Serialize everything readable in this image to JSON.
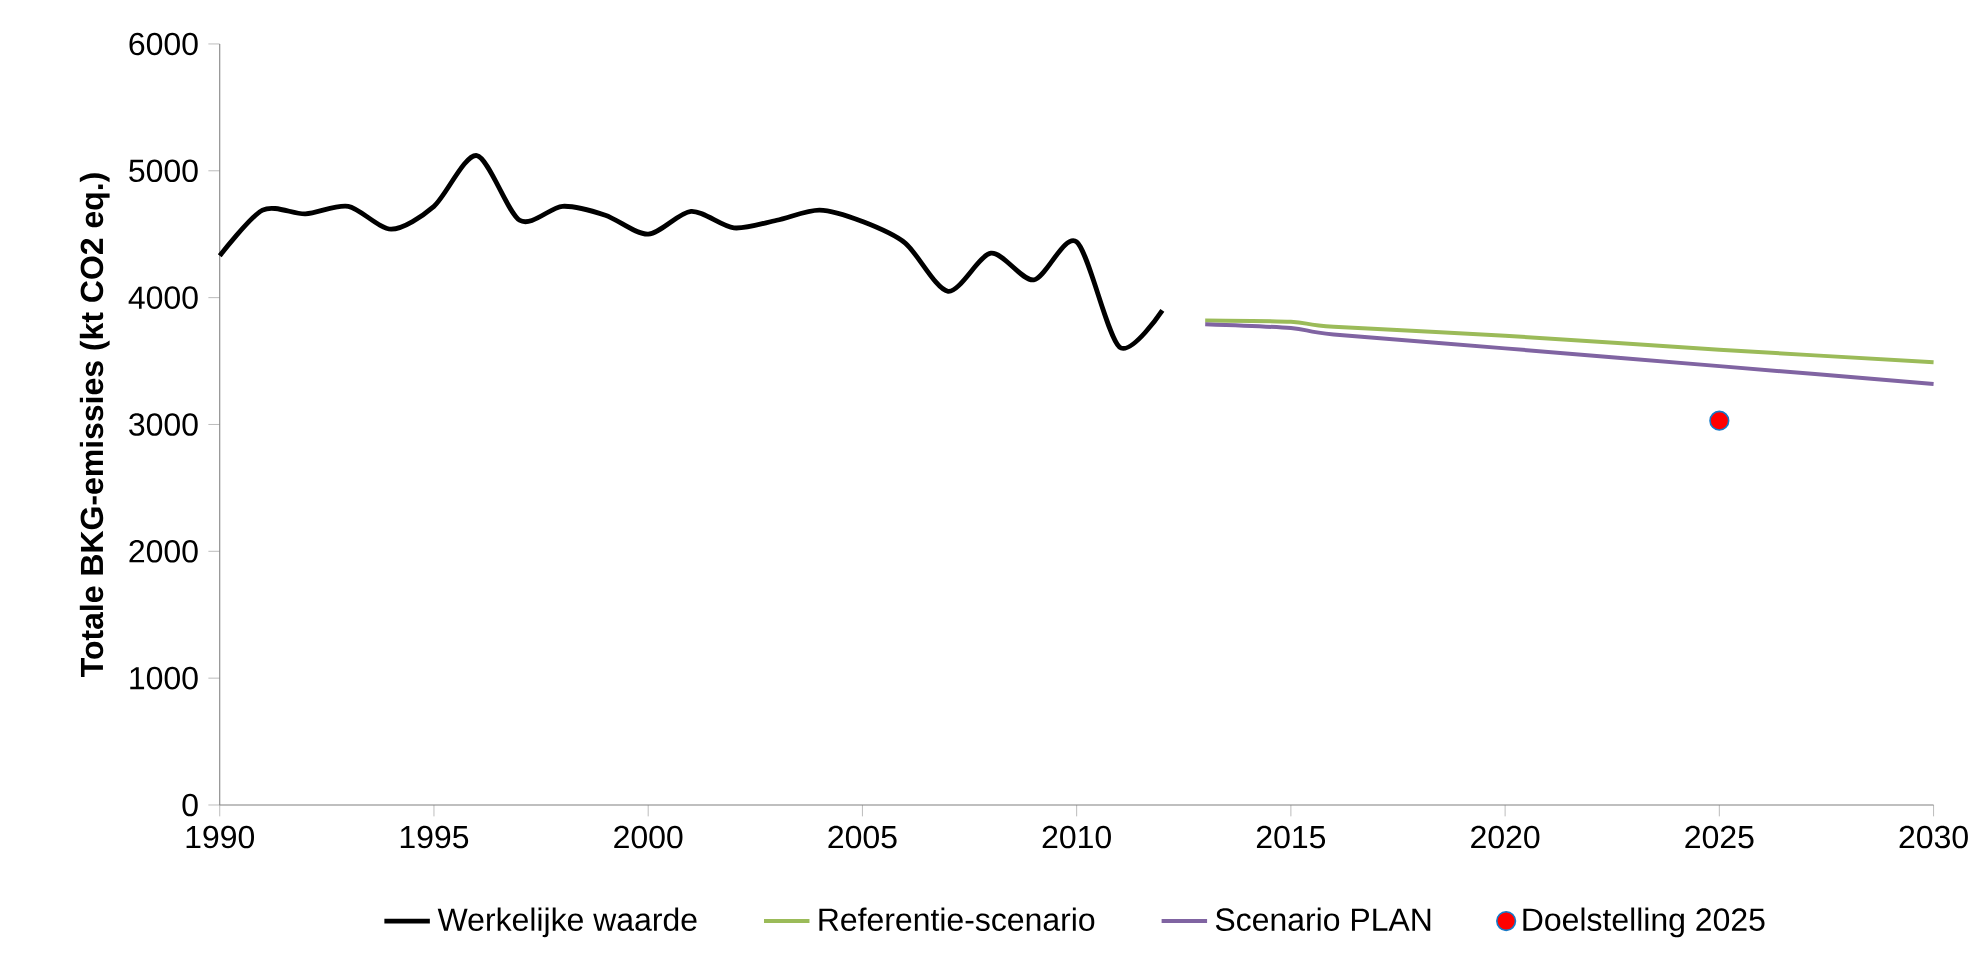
{
  "chart_data": {
    "type": "line",
    "ylabel": "Totale BKG-emissies (kt CO2 eq.)",
    "xlim": [
      1990,
      2030
    ],
    "xticks": [
      1990,
      1995,
      2000,
      2005,
      2010,
      2015,
      2020,
      2025,
      2030
    ],
    "ylim": [
      0,
      6000
    ],
    "yticks": [
      0,
      1000,
      2000,
      3000,
      4000,
      5000,
      6000
    ],
    "legend": "bottom",
    "grid": false,
    "series": [
      {
        "name": "Werkelijke waarde",
        "color": "#000000",
        "x": [
          1990,
          1991,
          1992,
          1993,
          1994,
          1995,
          1996,
          1997,
          1998,
          1999,
          2000,
          2001,
          2002,
          2003,
          2004,
          2005,
          2006,
          2007,
          2008,
          2009,
          2010,
          2011,
          2012
        ],
        "values": [
          4330,
          4690,
          4660,
          4720,
          4540,
          4720,
          5120,
          4610,
          4720,
          4650,
          4500,
          4680,
          4550,
          4610,
          4690,
          4600,
          4430,
          4050,
          4350,
          4140,
          4440,
          3610,
          3900
        ]
      },
      {
        "name": "Referentie-scenario",
        "color": "#9bbb59",
        "x": [
          2013,
          2015,
          2016,
          2020,
          2025,
          2030
        ],
        "values": [
          3820,
          3810,
          3770,
          3700,
          3590,
          3490
        ]
      },
      {
        "name": "Scenario PLAN",
        "color": "#8064a2",
        "x": [
          2013,
          2015,
          2016,
          2020,
          2025,
          2030
        ],
        "values": [
          3790,
          3760,
          3710,
          3600,
          3460,
          3320
        ]
      },
      {
        "name": "Doelstelling 2025",
        "type": "scatter",
        "color": "#ff0000",
        "x": [
          2025
        ],
        "values": [
          3030
        ]
      }
    ]
  }
}
